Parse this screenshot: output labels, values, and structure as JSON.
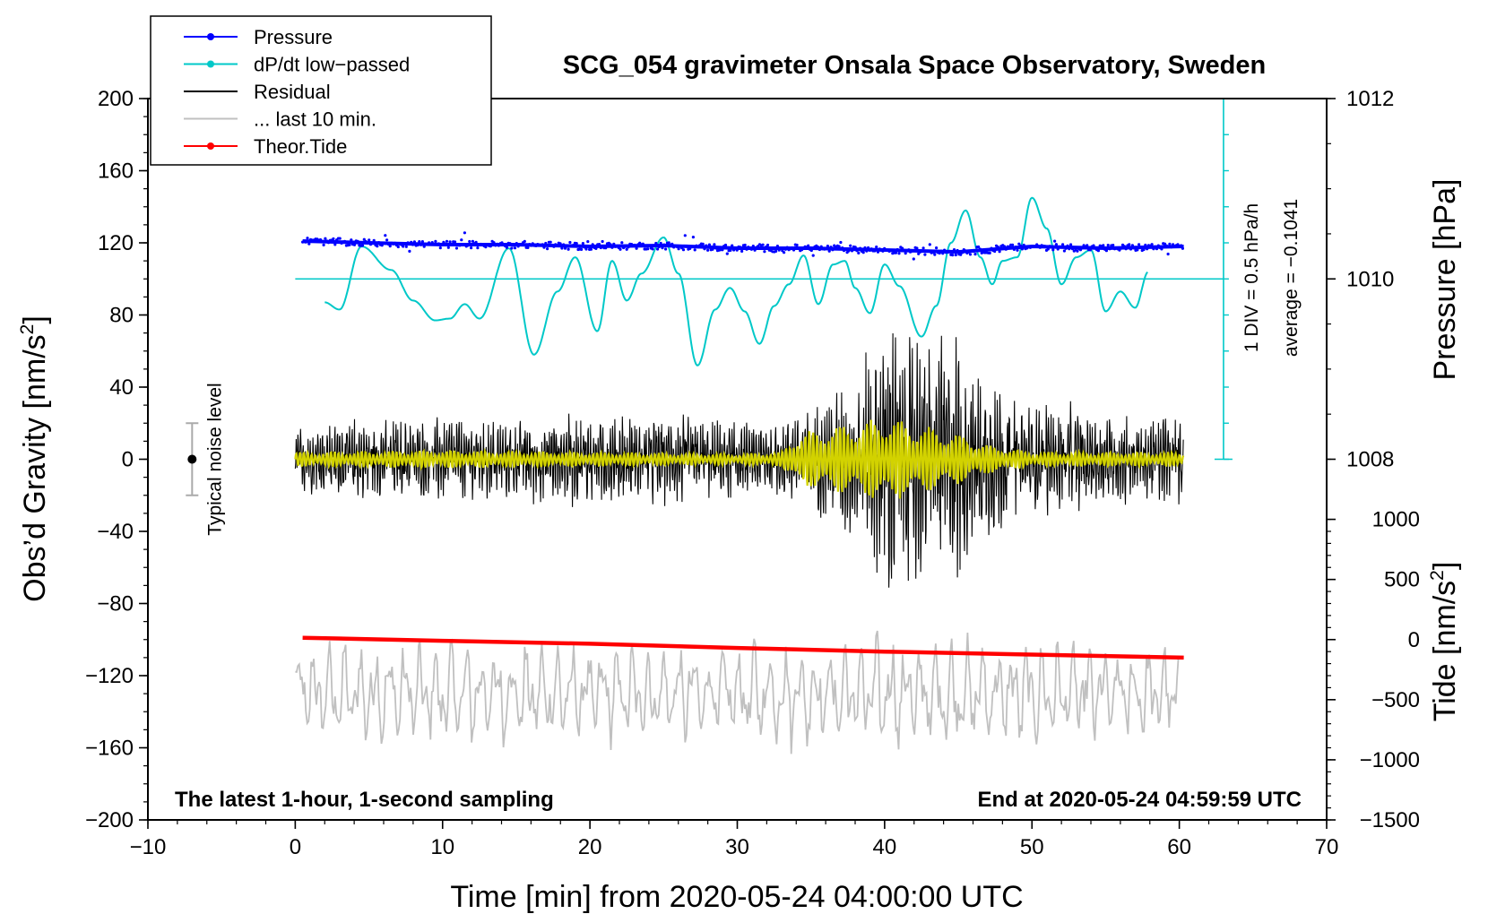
{
  "chart_data": {
    "type": "line",
    "title": "SCG_054 gravimeter Onsala Space Observatory, Sweden",
    "subtitle_left": "The latest 1-hour, 1-second sampling",
    "subtitle_right": "End at 2020-05-24 04:59:59 UTC",
    "xlabel": "Time [min] from 2020-05-24 04:00:00 UTC",
    "ylabel": "Obs'd Gravity [nm/s²]",
    "ylabel_main": "Obs’d Gravity [nm/s",
    "ylabel_sup": "2",
    "ylabel_end": "]",
    "xlim": [
      -10,
      70
    ],
    "ylim": [
      -200,
      200
    ],
    "x_ticks": [
      "−10",
      "0",
      "10",
      "20",
      "30",
      "40",
      "50",
      "60",
      "70"
    ],
    "x_tick_values": [
      -10,
      0,
      10,
      20,
      30,
      40,
      50,
      60,
      70
    ],
    "y_ticks": [
      "200",
      "160",
      "120",
      "80",
      "40",
      "0",
      "−40",
      "−80",
      "−120",
      "−160",
      "−200"
    ],
    "y_tick_values": [
      200,
      160,
      120,
      80,
      40,
      0,
      -40,
      -80,
      -120,
      -160,
      -200
    ],
    "pressure_axis": {
      "label": "Pressure [hPa]",
      "ticks": [
        "1012",
        "1010",
        "1008"
      ],
      "tick_values": [
        1012,
        1010,
        1008
      ],
      "ref_value": 1010,
      "ref_gravity": 100,
      "gravity_per_hPa": 50
    },
    "tide_axis": {
      "label_main": "Tide [nm/s",
      "label_sup": "2",
      "label_end": "]",
      "ticks": [
        "1000",
        "500",
        "0",
        "−500",
        "−1000",
        "−1500"
      ],
      "tick_values": [
        1000,
        500,
        0,
        -500,
        -1000,
        -1500
      ],
      "ref_value": 0,
      "ref_gravity": -100,
      "gravity_per_unit": 0.06667
    },
    "dpdt_scale": {
      "label_div": "1 DIV = 0.5 hPa/h",
      "label_avg": "average = −0.1041",
      "baseline_gravity": 100
    },
    "noise_level": {
      "label": "Typical noise level",
      "x": -7,
      "center": 0,
      "low": -20,
      "high": 20
    },
    "legend": [
      {
        "label": "Pressure",
        "color": "#0000ff",
        "marker": true
      },
      {
        "label": "dP/dt low−passed",
        "color": "#00c8c8",
        "marker": true
      },
      {
        "label": "Residual",
        "color": "#000000",
        "marker": false
      },
      {
        "label": "... last 10 min.",
        "color": "#c0c0c0",
        "marker": false
      },
      {
        "label": "Theor.Tide",
        "color": "#ff0000",
        "marker": true
      }
    ],
    "series": [
      {
        "name": "Pressure",
        "unit": "hPa",
        "color": "#0000ff",
        "x": [
          0.5,
          5,
          10,
          15,
          20,
          25,
          30,
          35,
          40,
          45,
          50,
          55,
          60.3
        ],
        "values": [
          1010.42,
          1010.4,
          1010.38,
          1010.38,
          1010.36,
          1010.37,
          1010.34,
          1010.34,
          1010.32,
          1010.3,
          1010.36,
          1010.34,
          1010.36
        ]
      },
      {
        "name": "dP/dt low-passed",
        "unit": "gravity-plot units",
        "color": "#00c8c8",
        "x": [
          2,
          3,
          4.5,
          6.5,
          8,
          9.5,
          10.5,
          11.5,
          12.5,
          14.5,
          16.2,
          17.8,
          19,
          20.5,
          21.5,
          22.5,
          23.5,
          25,
          26,
          27.3,
          28.5,
          29.5,
          30.5,
          31.5,
          32.5,
          33.5,
          34.5,
          35.5,
          36.5,
          37.3,
          38,
          39,
          40,
          41,
          42.5,
          43.5,
          44.5,
          45.5,
          46.5,
          47.3,
          48,
          49,
          50,
          51,
          52,
          53,
          54,
          55,
          56,
          57,
          57.9
        ],
        "values": [
          87,
          83,
          118,
          105,
          88,
          77,
          78,
          86,
          78,
          117,
          58,
          93,
          112,
          71,
          110,
          88,
          103,
          123,
          103,
          52,
          83,
          95,
          82,
          64,
          85,
          97,
          113,
          86,
          108,
          110,
          95,
          81,
          108,
          96,
          68,
          85,
          120,
          138,
          112,
          97,
          110,
          112,
          145,
          128,
          97,
          112,
          116,
          82,
          93,
          84,
          104
        ]
      },
      {
        "name": "Residual",
        "unit": "nm/s²",
        "color": "#000000",
        "x": [
          0,
          5,
          10,
          15,
          20,
          25,
          30,
          33,
          35,
          37,
          39,
          40,
          41,
          42,
          44,
          45,
          46,
          48,
          50,
          52,
          55,
          58,
          60.3
        ],
        "amplitude": [
          18,
          22,
          22,
          24,
          24,
          24,
          20,
          20,
          26,
          40,
          55,
          75,
          78,
          65,
          62,
          72,
          50,
          40,
          28,
          30,
          24,
          24,
          24
        ]
      },
      {
        "name": "Residual filtered",
        "unit": "nm/s²",
        "color": "#d2d200",
        "x": [
          0,
          10,
          20,
          30,
          33,
          34,
          36,
          38,
          40,
          41,
          43,
          45,
          47,
          50,
          55,
          60.3
        ],
        "amplitude": [
          4,
          5,
          4,
          3,
          4,
          14,
          18,
          20,
          24,
          22,
          18,
          14,
          8,
          4,
          4,
          4
        ]
      },
      {
        "name": "... last 10 min.",
        "unit": "nm/s²",
        "color": "#c0c0c0",
        "x": [
          0,
          10,
          20,
          30,
          32,
          35,
          40,
          45,
          50,
          55,
          60
        ],
        "amplitude": [
          28,
          28,
          26,
          26,
          30,
          28,
          32,
          28,
          28,
          26,
          26
        ],
        "offset": -130
      },
      {
        "name": "Theor.Tide",
        "unit": "nm/s²",
        "color": "#ff0000",
        "x": [
          0.5,
          10,
          20,
          30,
          40,
          50,
          60.3
        ],
        "values": [
          15,
          -10,
          -35,
          -70,
          -100,
          -125,
          -150
        ]
      }
    ]
  }
}
